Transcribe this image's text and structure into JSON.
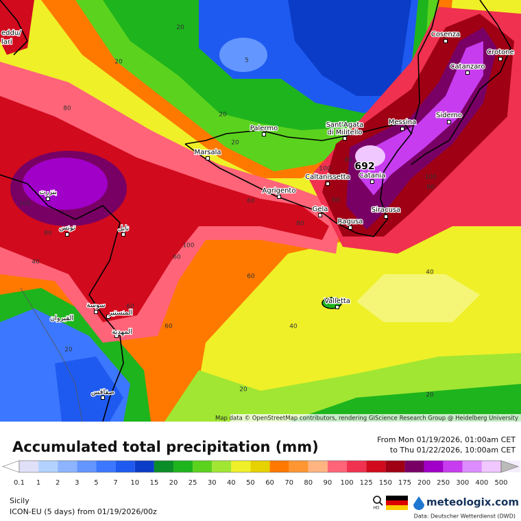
{
  "map": {
    "cities": [
      "Cosenza",
      "Crotone",
      "Catanzaro",
      "Siderno",
      "Messina",
      "Sant'Agata",
      "di Militello",
      "Palermo",
      "Marsala",
      "Caltanissetta",
      "Catania",
      "Agrigento",
      "Gela",
      "Siracusa",
      "Ragusa",
      "Valletta",
      "بنزرت",
      "تونس",
      "نابل",
      "سوسة",
      "المنستير",
      "المهدية",
      "القيروان",
      "صفاقس",
      "eddu/",
      "lari"
    ],
    "contour_labels": [
      20,
      20,
      5,
      80,
      20,
      20,
      40,
      100,
      692,
      60,
      60,
      80,
      100,
      80,
      100,
      80,
      40,
      100,
      60,
      60,
      40,
      40,
      60,
      20,
      20,
      20,
      60
    ],
    "attribution": "Map data © OpenStreetMap contributors, rendering GIScience Research Group @ Heidelberg University"
  },
  "legend": {
    "title": "Accumulated total precipitation (mm)",
    "from": "From Mon 01/19/2026, 01:00am CET",
    "to": "to Thu 01/22/2026, 10:00am CET",
    "ticks": [
      0.1,
      1,
      2,
      3,
      5,
      7,
      10,
      15,
      20,
      25,
      30,
      40,
      50,
      60,
      70,
      80,
      90,
      100,
      125,
      150,
      175,
      200,
      250,
      300,
      400,
      500
    ],
    "colors": [
      "#ffffff",
      "#e0e0f8",
      "#b4d2ff",
      "#8cb4ff",
      "#6496ff",
      "#3c78ff",
      "#1e5af0",
      "#0a3cc8",
      "#0a8c28",
      "#1eb41e",
      "#5ad21e",
      "#a0e632",
      "#f0f028",
      "#e6d200",
      "#ff7800",
      "#ff9632",
      "#ffb482",
      "#ff6478",
      "#f03250",
      "#d20a1e",
      "#a00014",
      "#780064",
      "#a000c8",
      "#c83cf0",
      "#dc8cff",
      "#f0c8ff",
      "#f4eefc",
      "#bbbbbb"
    ],
    "region": "Sicily",
    "model": "ICON-EU (5 days) from 01/19/2026/00z",
    "brand": "meteologix.com",
    "hd": "HD",
    "source": "Data: Deutscher Wetterdienst (DWD)"
  }
}
